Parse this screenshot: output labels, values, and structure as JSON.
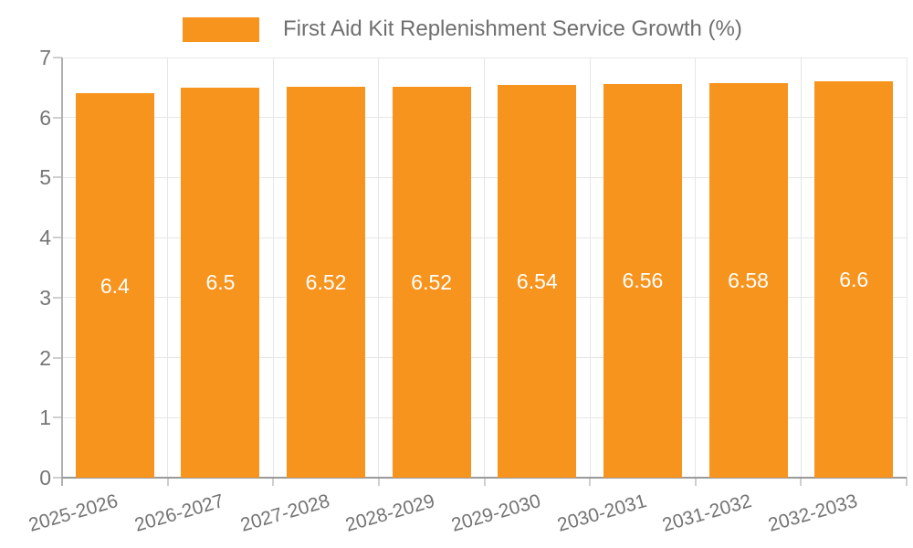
{
  "chart_data": {
    "type": "bar",
    "title": "First Aid Kit Replenishment Service Growth (%)",
    "legend_position": "top",
    "grid": true,
    "categories": [
      "2025-2026",
      "2026-2027",
      "2027-2028",
      "2028-2029",
      "2029-2030",
      "2030-2031",
      "2031-2032",
      "2032-2033"
    ],
    "series": [
      {
        "name": "First Aid Kit Replenishment Service Growth (%)",
        "values": [
          6.4,
          6.5,
          6.52,
          6.52,
          6.54,
          6.56,
          6.58,
          6.6
        ]
      }
    ],
    "value_labels": [
      "6.4",
      "6.5",
      "6.52",
      "6.52",
      "6.54",
      "6.56",
      "6.58",
      "6.6"
    ],
    "xlabel": "",
    "ylabel": "",
    "ylim": [
      0,
      7
    ],
    "ytick_labels": [
      "0",
      "1",
      "2",
      "3",
      "4",
      "5",
      "6",
      "7"
    ],
    "colors": {
      "bar": "#F7941E",
      "value_label": "#FFFFFF",
      "axis_text": "#757575",
      "legend_text": "#6F6F6F",
      "gridline": "#E6E6E6",
      "y_axis_line": "#B0B0B0",
      "x_axis_line": "#9A9A9A",
      "tick": "#CFCFCF",
      "background": "#FFFFFF"
    }
  }
}
